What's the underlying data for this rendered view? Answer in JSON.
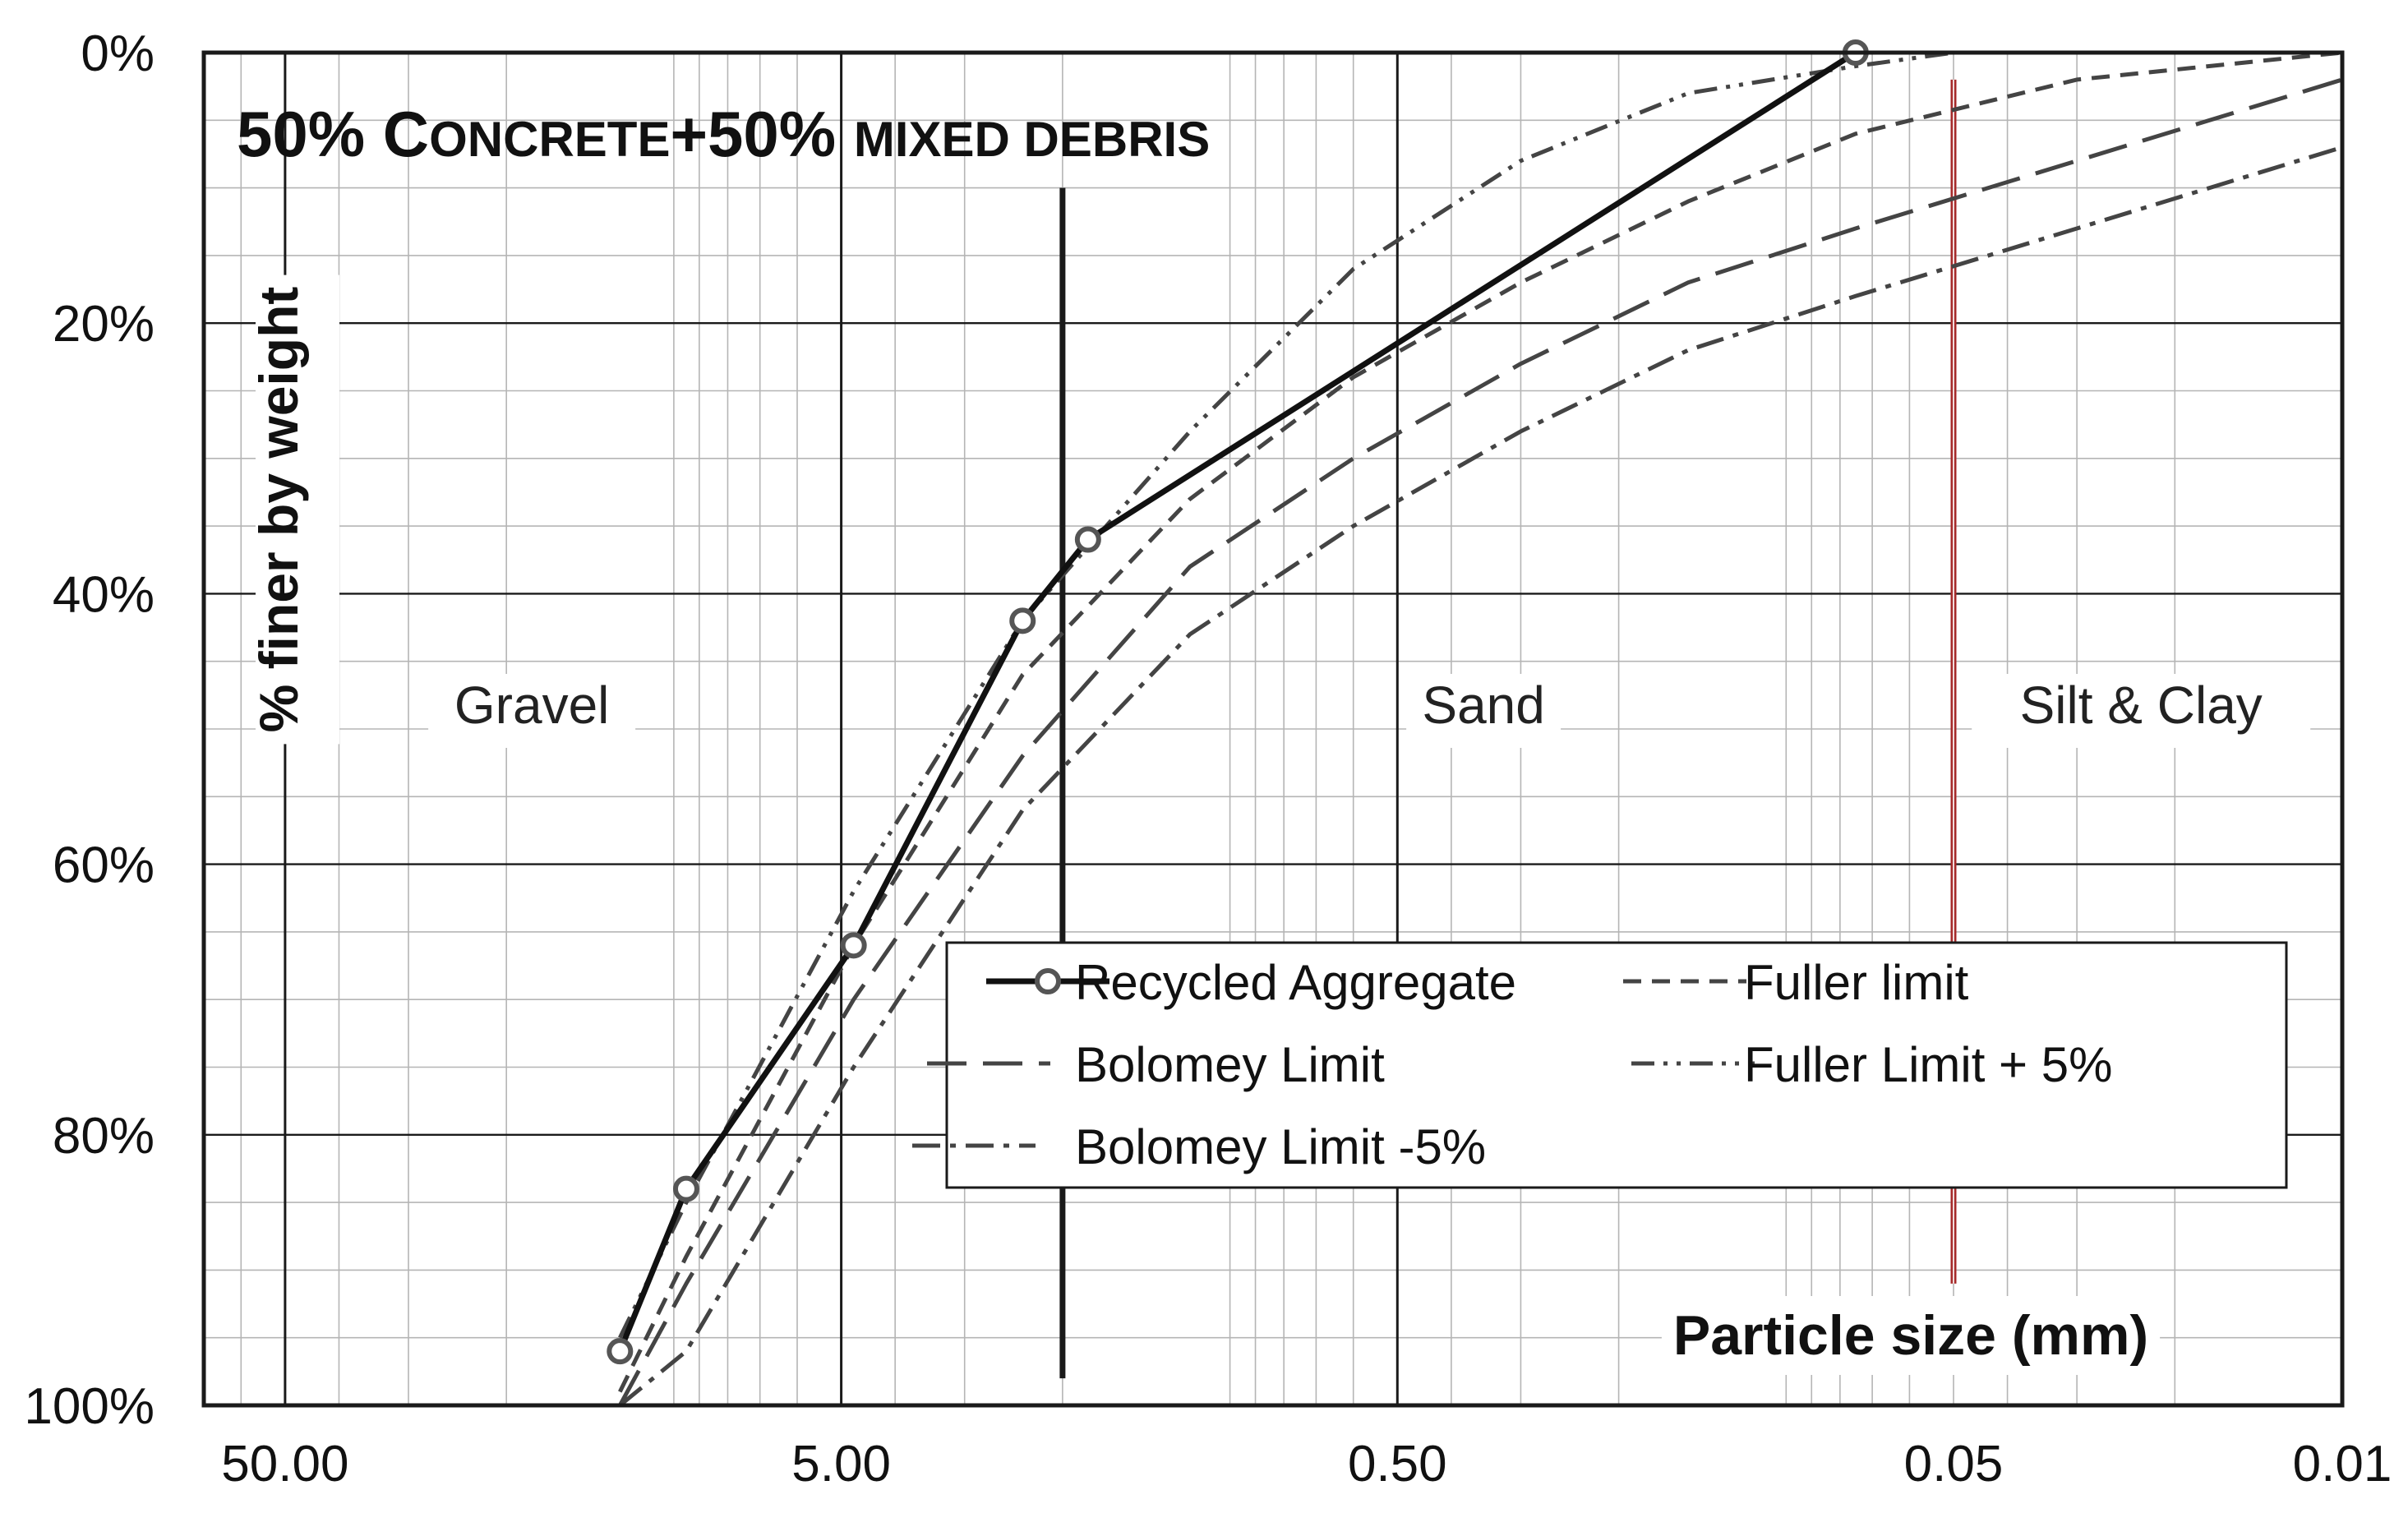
{
  "chart_data": {
    "type": "line",
    "title": "50% Concrete+50% mixed debris",
    "title_parts": [
      "50% C",
      "ONCRETE",
      "+50% ",
      "MIXED DEBRIS"
    ],
    "xlabel": "Particle size (mm)",
    "ylabel": "% finer by weight",
    "x_scale": "log",
    "x_axis_reversed": true,
    "xlim": [
      70,
      0.01
    ],
    "ylim": [
      0,
      100
    ],
    "y_axis_inverted": true,
    "x_tick_labels": [
      {
        "value": 50,
        "label": "50.00"
      },
      {
        "value": 5,
        "label": "5.00"
      },
      {
        "value": 0.5,
        "label": "0.50"
      },
      {
        "value": 0.05,
        "label": "0.05"
      },
      {
        "value": 0.01,
        "label": "0.01"
      }
    ],
    "y_tick_labels": [
      {
        "value": 0,
        "label": "0%"
      },
      {
        "value": 20,
        "label": "20%"
      },
      {
        "value": 40,
        "label": "40%"
      },
      {
        "value": 60,
        "label": "60%"
      },
      {
        "value": 80,
        "label": "80%"
      },
      {
        "value": 100,
        "label": "100%"
      }
    ],
    "zones": [
      {
        "label": "Gravel",
        "x": 18
      },
      {
        "label": "Sand",
        "x": 0.35
      },
      {
        "label": "Silt & Clay",
        "x": 0.023
      }
    ],
    "boundaries": [
      {
        "x": 2.0,
        "color": "#1a1a1a",
        "y_from": 10,
        "y_to": 98
      },
      {
        "x": 0.05,
        "color": "#a52a2a",
        "y_from": 2,
        "y_to": 91
      }
    ],
    "grid": true,
    "legend_position": "lower-right",
    "series": [
      {
        "name": "Recycled Aggregate",
        "style": "solid-markers",
        "color": "#111111",
        "x": [
          12.5,
          9.5,
          4.75,
          2.36,
          1.8,
          0.075
        ],
        "y": [
          96,
          84,
          66,
          42,
          36,
          0
        ]
      },
      {
        "name": "Fuller limit",
        "style": "dash",
        "color": "#444444",
        "x": [
          12.5,
          9.5,
          4.75,
          2.36,
          1.18,
          0.6,
          0.3,
          0.15,
          0.075,
          0.03,
          0.01
        ],
        "y": [
          99,
          89,
          66,
          46,
          33,
          24,
          17,
          11,
          6,
          2,
          0
        ]
      },
      {
        "name": "Bolomey Limit",
        "style": "long-dash",
        "color": "#444444",
        "x": [
          12.5,
          9.5,
          4.75,
          2.36,
          1.18,
          0.6,
          0.3,
          0.15,
          0.075,
          0.03,
          0.01
        ],
        "y": [
          100,
          91,
          70,
          52,
          38,
          30,
          23,
          17,
          13,
          8,
          2
        ]
      },
      {
        "name": "Fuller Limit + 5%",
        "style": "dash-dot-dot",
        "color": "#444444",
        "x": [
          12.5,
          9.5,
          4.75,
          2.36,
          1.18,
          0.6,
          0.3,
          0.15,
          0.075,
          0.05
        ],
        "y": [
          95,
          85,
          62,
          42,
          28,
          16,
          8,
          3,
          1,
          0
        ]
      },
      {
        "name": "Bolomey Limit -5%",
        "style": "dash-dot",
        "color": "#444444",
        "x": [
          12.5,
          9.5,
          4.75,
          2.36,
          1.18,
          0.6,
          0.3,
          0.15,
          0.075,
          0.03,
          0.01
        ],
        "y": [
          100,
          96,
          75,
          56,
          43,
          35,
          28,
          22,
          18,
          13,
          7
        ]
      }
    ]
  }
}
